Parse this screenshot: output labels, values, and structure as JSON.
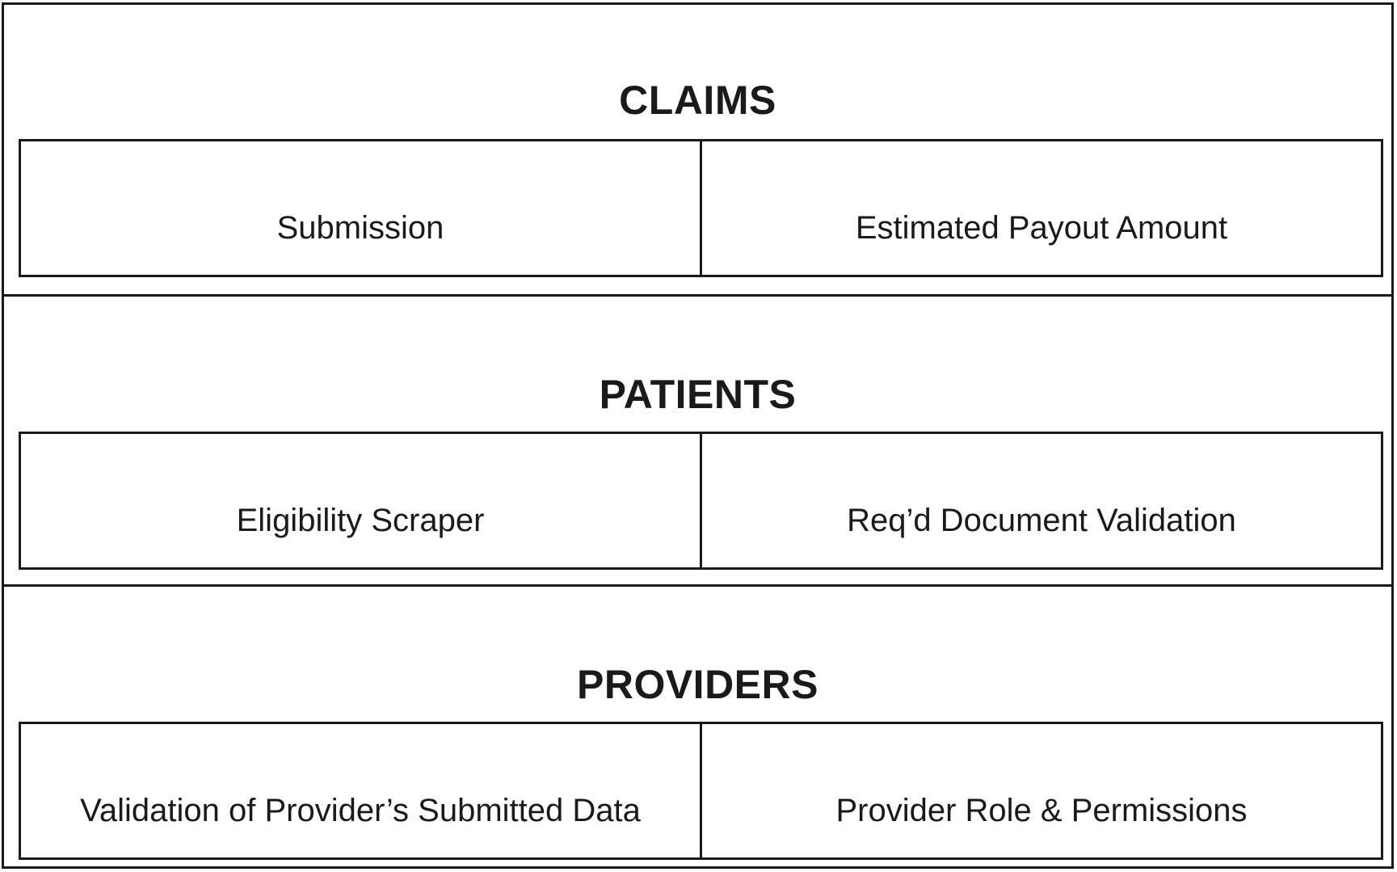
{
  "sections": [
    {
      "title": "CLAIMS",
      "modules": [
        "Submission",
        "Estimated Payout Amount"
      ]
    },
    {
      "title": "PATIENTS",
      "modules": [
        "Eligibility Scraper",
        "Req’d Document Validation"
      ]
    },
    {
      "title": "PROVIDERS",
      "modules": [
        "Validation of Provider’s Submitted Data",
        "Provider Role & Permissions"
      ]
    }
  ],
  "colors": {
    "line": "#1a1a1a",
    "background": "#ffffff"
  }
}
